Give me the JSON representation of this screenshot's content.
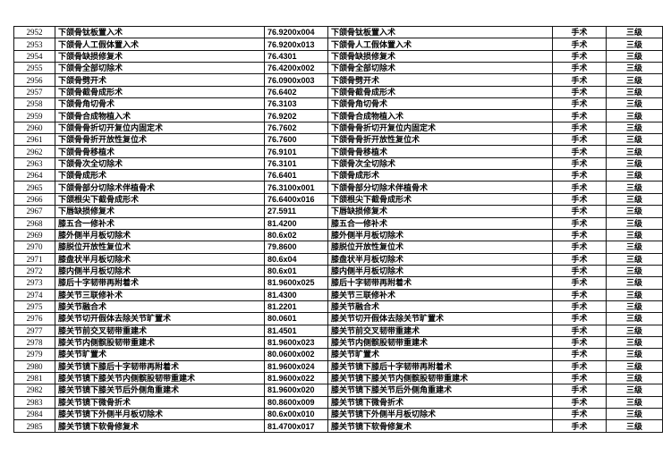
{
  "page": {
    "background_color": "#ffffff",
    "border_color": "#141414",
    "text_color": "#000000"
  },
  "table": {
    "columns": [
      "row_number",
      "procedure_name",
      "procedure_code",
      "procedure_name_repeat",
      "category",
      "level"
    ],
    "rows": [
      [
        "2952",
        "下颌骨钛板置入术",
        "76.9200x004",
        "下颌骨钛板置入术",
        "手术",
        "三级"
      ],
      [
        "2953",
        "下颌骨人工假体置入术",
        "76.9200x013",
        "下颌骨人工假体置入术",
        "手术",
        "三级"
      ],
      [
        "2954",
        "下颌骨缺损修复术",
        "76.4301",
        "下颌骨缺损修复术",
        "手术",
        "三级"
      ],
      [
        "2955",
        "下颌骨全部切除术",
        "76.4200x002",
        "下颌骨全部切除术",
        "手术",
        "三级"
      ],
      [
        "2956",
        "下颌骨劈开术",
        "76.0900x003",
        "下颌骨劈开术",
        "手术",
        "三级"
      ],
      [
        "2957",
        "下颌骨截骨成形术",
        "76.6402",
        "下颌骨截骨成形术",
        "手术",
        "三级"
      ],
      [
        "2958",
        "下颌骨角切骨术",
        "76.3103",
        "下颌骨角切骨术",
        "手术",
        "三级"
      ],
      [
        "2959",
        "下颌骨合成物植入术",
        "76.9202",
        "下颌骨合成物植入术",
        "手术",
        "三级"
      ],
      [
        "2960",
        "下颌骨骨折切开复位内固定术",
        "76.7602",
        "下颌骨骨折切开复位内固定术",
        "手术",
        "三级"
      ],
      [
        "2961",
        "下颌骨骨折开放性复位术",
        "76.7600",
        "下颌骨骨折开放性复位术",
        "手术",
        "三级"
      ],
      [
        "2962",
        "下颌骨骨移植术",
        "76.9101",
        "下颌骨骨移植术",
        "手术",
        "三级"
      ],
      [
        "2963",
        "下颌骨次全切除术",
        "76.3101",
        "下颌骨次全切除术",
        "手术",
        "三级"
      ],
      [
        "2964",
        "下颌骨成形术",
        "76.6401",
        "下颌骨成形术",
        "手术",
        "三级"
      ],
      [
        "2965",
        "下颌骨部分切除术伴植骨术",
        "76.3100x001",
        "下颌骨部分切除术伴植骨术",
        "手术",
        "三级"
      ],
      [
        "2966",
        "下颌根尖下截骨成形术",
        "76.6400x016",
        "下颌根尖下截骨成形术",
        "手术",
        "三级"
      ],
      [
        "2967",
        "下唇缺损修复术",
        "27.5911",
        "下唇缺损修复术",
        "手术",
        "三级"
      ],
      [
        "2968",
        "膝五合一修补术",
        "81.4200",
        "膝五合一修补术",
        "手术",
        "三级"
      ],
      [
        "2969",
        "膝外侧半月板切除术",
        "80.6x02",
        "膝外侧半月板切除术",
        "手术",
        "三级"
      ],
      [
        "2970",
        "膝脱位开放性复位术",
        "79.8600",
        "膝脱位开放性复位术",
        "手术",
        "三级"
      ],
      [
        "2971",
        "膝盘状半月板切除术",
        "80.6x04",
        "膝盘状半月板切除术",
        "手术",
        "三级"
      ],
      [
        "2972",
        "膝内侧半月板切除术",
        "80.6x01",
        "膝内侧半月板切除术",
        "手术",
        "三级"
      ],
      [
        "2973",
        "膝后十字韧带再附着术",
        "81.9600x025",
        "膝后十字韧带再附着术",
        "手术",
        "三级"
      ],
      [
        "2974",
        "膝关节三联修补术",
        "81.4300",
        "膝关节三联修补术",
        "手术",
        "三级"
      ],
      [
        "2975",
        "膝关节融合术",
        "81.2201",
        "膝关节融合术",
        "手术",
        "三级"
      ],
      [
        "2976",
        "膝关节切开假体去除关节旷置术",
        "80.0601",
        "膝关节切开假体去除关节旷置术",
        "手术",
        "三级"
      ],
      [
        "2977",
        "膝关节前交叉韧带重建术",
        "81.4501",
        "膝关节前交叉韧带重建术",
        "手术",
        "三级"
      ],
      [
        "2978",
        "膝关节内侧髌股韧带重建术",
        "81.9600x023",
        "膝关节内侧髌股韧带重建术",
        "手术",
        "三级"
      ],
      [
        "2979",
        "膝关节旷置术",
        "80.0600x002",
        "膝关节旷置术",
        "手术",
        "三级"
      ],
      [
        "2980",
        "膝关节镜下膝后十字韧带再附着术",
        "81.9600x024",
        "膝关节镜下膝后十字韧带再附着术",
        "手术",
        "三级"
      ],
      [
        "2981",
        "膝关节镜下膝关节内侧髌股韧带重建术",
        "81.9600x022",
        "膝关节镜下膝关节内侧髌股韧带重建术",
        "手术",
        "三级"
      ],
      [
        "2982",
        "膝关节镜下膝关节后外侧角重建术",
        "81.9600x020",
        "膝关节镜下膝关节后外侧角重建术",
        "手术",
        "三级"
      ],
      [
        "2983",
        "膝关节镜下微骨折术",
        "80.8600x009",
        "膝关节镜下微骨折术",
        "手术",
        "三级"
      ],
      [
        "2984",
        "膝关节镜下外侧半月板切除术",
        "80.6x00x010",
        "膝关节镜下外侧半月板切除术",
        "手术",
        "三级"
      ],
      [
        "2985",
        "膝关节镜下软骨修复术",
        "81.4700x017",
        "膝关节镜下软骨修复术",
        "手术",
        "三级"
      ]
    ]
  }
}
